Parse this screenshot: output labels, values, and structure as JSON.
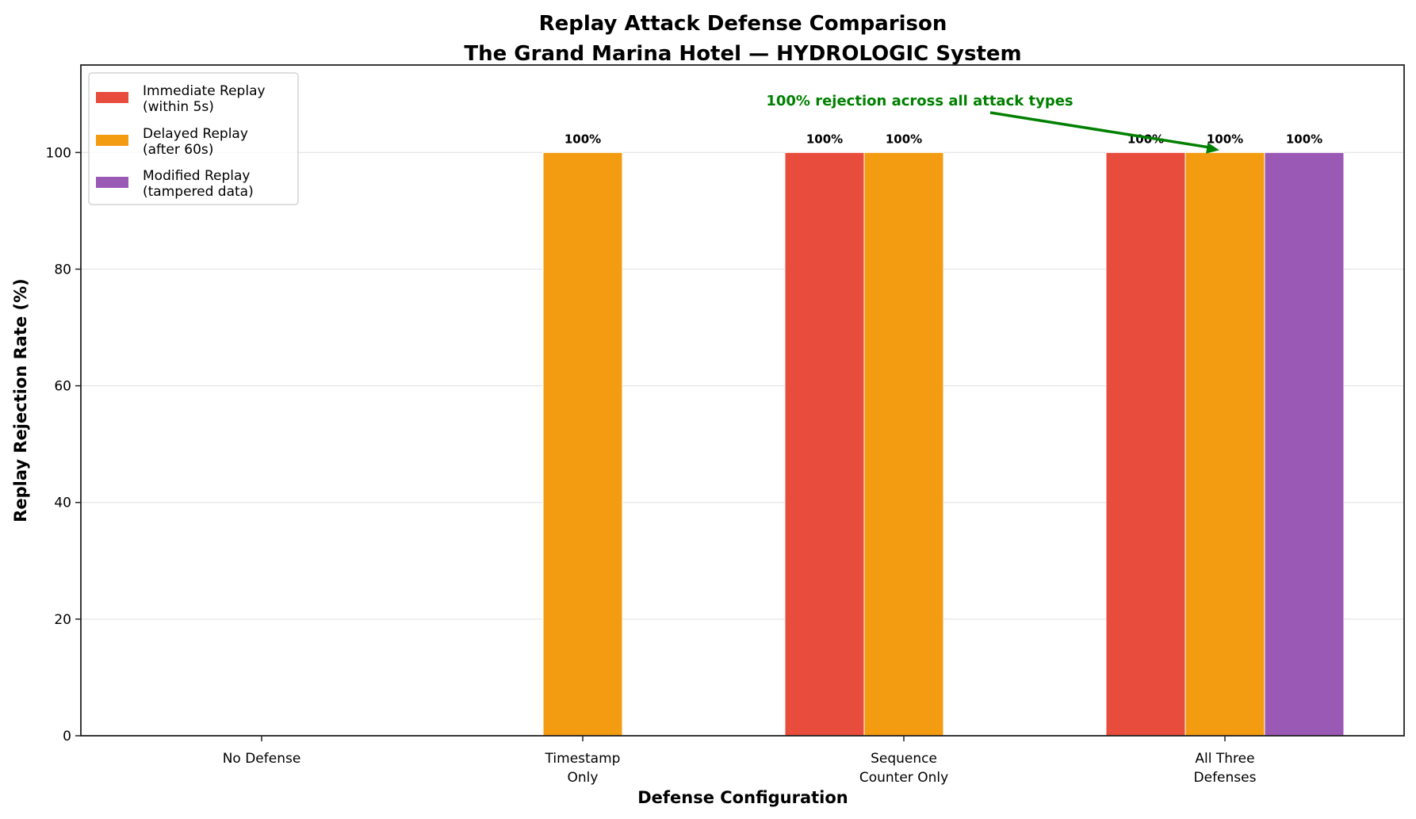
{
  "chart_data": {
    "type": "bar",
    "title": "Replay Attack Defense Comparison",
    "subtitle": "The Grand Marina Hotel — HYDROLOGIC System",
    "xlabel": "Defense Configuration",
    "ylabel": "Replay Rejection Rate (%)",
    "ylim": [
      0,
      115
    ],
    "yticks": [
      0,
      20,
      40,
      60,
      80,
      100
    ],
    "grid": "y",
    "legend_position": "upper left",
    "categories": [
      "No Defense",
      "Timestamp\nOnly",
      "Sequence\nCounter Only",
      "All Three\nDefenses"
    ],
    "series": [
      {
        "name": "Immediate Replay\n(within 5s)",
        "color": "#e74c3c",
        "values": [
          0,
          0,
          100,
          100
        ]
      },
      {
        "name": "Delayed Replay\n(after 60s)",
        "color": "#f39c12",
        "values": [
          0,
          100,
          100,
          100
        ]
      },
      {
        "name": "Modified Replay\n(tampered data)",
        "color": "#9b59b6",
        "values": [
          0,
          0,
          0,
          100
        ]
      }
    ],
    "bar_value_labels": "value%",
    "annotations": [
      {
        "text": "100% rejection across all attack types",
        "color": "#008000",
        "arrow_to": {
          "category": "All Three\nDefenses",
          "series": 1,
          "y": 100
        }
      }
    ]
  },
  "layout_colors": {
    "axis": "#222222",
    "grid": "#e5e5e5",
    "legend_border": "#d4d4d4",
    "annotation": "#008000"
  }
}
